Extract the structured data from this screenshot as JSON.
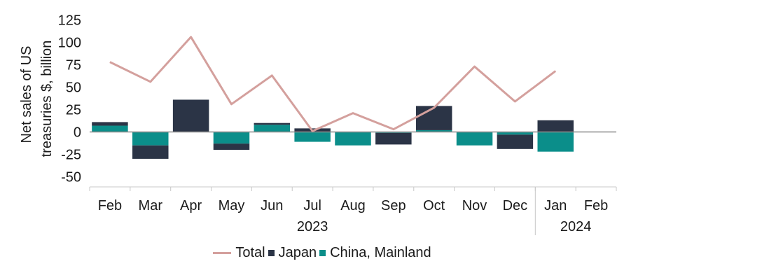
{
  "chart_data": {
    "type": "bar",
    "title": "",
    "ylabel": "Net sales of US treasuries $, billion",
    "ylabel_lines": [
      "Net sales of US",
      "treasuries $, billion"
    ],
    "ylim": [
      -50,
      125
    ],
    "yticks": [
      125,
      100,
      75,
      50,
      25,
      0,
      -25,
      -50
    ],
    "ytick_labels": [
      "125",
      "100",
      "75",
      "50",
      "25",
      "0",
      "-25",
      "-50"
    ],
    "categories": [
      "Feb",
      "Mar",
      "Apr",
      "May",
      "Jun",
      "Jul",
      "Aug",
      "Sep",
      "Oct",
      "Nov",
      "Dec",
      "Jan",
      "Feb"
    ],
    "year_labels": [
      {
        "label": "2023",
        "under_category": 5
      },
      {
        "label": "2024",
        "under_category": 11.5
      }
    ],
    "year_divider_after_category": 10.5,
    "stacked": true,
    "series": [
      {
        "name": "China, Mainland",
        "kind": "bar",
        "color": "#0b8e8a",
        "values": [
          7,
          -15,
          0,
          -13,
          8,
          -11,
          -15,
          -1,
          2,
          -15,
          -3,
          -22,
          null
        ]
      },
      {
        "name": "Japan",
        "kind": "bar",
        "color": "#2b3446",
        "values": [
          4,
          -15,
          36,
          -7,
          2,
          4,
          0,
          -13,
          27,
          0,
          -16,
          13,
          null
        ]
      },
      {
        "name": "Total",
        "kind": "line",
        "color": "#d4a09d",
        "values": [
          78,
          56,
          106,
          31,
          63,
          1,
          21,
          3,
          27,
          73,
          34,
          68,
          null
        ]
      }
    ],
    "legend": {
      "position": "bottom",
      "items": [
        {
          "name": "Total",
          "color": "#d4a09d",
          "symbol": "line"
        },
        {
          "name": "Japan",
          "color": "#2b3446",
          "symbol": "box"
        },
        {
          "name": "China, Mainland",
          "color": "#0b8e8a",
          "symbol": "box"
        }
      ]
    },
    "grid": false
  }
}
